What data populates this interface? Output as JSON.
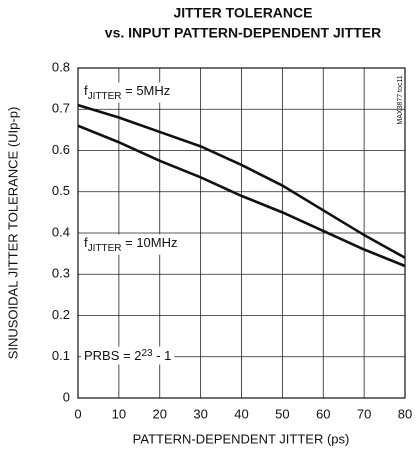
{
  "chart_data": {
    "type": "line",
    "title": "JITTER TOLERANCE",
    "subtitle": "vs. INPUT PATTERN-DEPENDENT JITTER",
    "x_label": "PATTERN-DEPENDENT JITTER (ps)",
    "y_label": "SINUSOIDAL JITTER TOLERANCE (UIp-p)",
    "side_note": "MAX3877 toc11",
    "x": [
      0,
      10,
      20,
      30,
      40,
      50,
      60,
      70,
      80
    ],
    "series": [
      {
        "color": "#111111",
        "values": [
          0.71,
          0.68,
          0.645,
          0.61,
          0.565,
          0.515,
          0.455,
          0.395,
          0.34
        ]
      },
      {
        "color": "#111111",
        "values": [
          0.66,
          0.62,
          0.575,
          0.535,
          0.49,
          0.45,
          0.405,
          0.36,
          0.32
        ]
      }
    ],
    "annotations": [
      {
        "parts": [
          "f",
          "JITTER",
          " = 5MHz"
        ]
      },
      {
        "parts": [
          "f",
          "JITTER",
          " = 10MHz"
        ]
      },
      {
        "parts": [
          "PRBS = 2",
          "23",
          " - 1"
        ]
      }
    ],
    "xlim": [
      0,
      80
    ],
    "xticks": [
      0,
      10,
      20,
      30,
      40,
      50,
      60,
      70,
      80
    ],
    "ylim": [
      0,
      0.8
    ],
    "yticks": [
      0,
      0.1,
      0.2,
      0.3,
      0.4,
      0.5,
      0.6,
      0.7,
      0.8
    ],
    "grid": true
  }
}
